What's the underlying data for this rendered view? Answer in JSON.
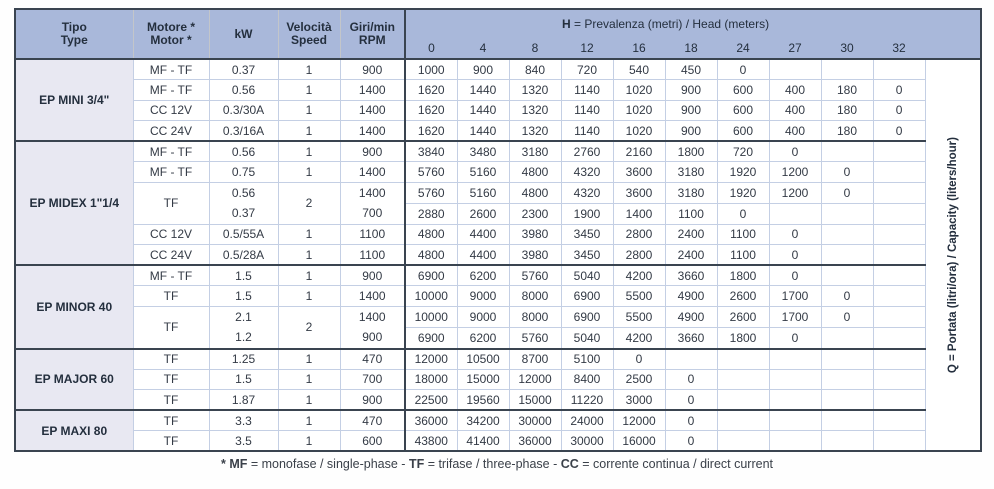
{
  "colors": {
    "header_bg": "#a9b8da",
    "section_bg": "#e8e8f2",
    "border_dark": "#3a4450",
    "grid_line": "#c4cfe4",
    "header_text": "#242f3e",
    "cell_text": "#333a45"
  },
  "table": {
    "left_columns": [
      {
        "id": "tipo",
        "lines": [
          "Tipo",
          "Type"
        ]
      },
      {
        "id": "motore",
        "lines": [
          "Motore *",
          "Motor *"
        ]
      },
      {
        "id": "kw",
        "lines": [
          "kW"
        ]
      },
      {
        "id": "velocita",
        "lines": [
          "Velocità",
          "Speed"
        ]
      },
      {
        "id": "giri",
        "lines": [
          "Giri/min",
          "RPM"
        ]
      }
    ],
    "head_group_parts": [
      {
        "text": "H",
        "bold": true
      },
      {
        "text": " = Prevalenza (metri) / Head (meters)",
        "bold": false
      }
    ],
    "head_values": [
      "0",
      "4",
      "8",
      "12",
      "16",
      "18",
      "24",
      "27",
      "30",
      "32"
    ],
    "capacity_label": "Q = Portata (litri/ora) / Capacity (liters/hour)",
    "sections": [
      {
        "name": "EP MINI 3/4\"",
        "rows": [
          {
            "motor": "MF - TF",
            "kw": "0.37",
            "speed": "1",
            "rpm": "900",
            "q": [
              "1000",
              "900",
              "840",
              "720",
              "540",
              "450",
              "0",
              "",
              "",
              ""
            ]
          },
          {
            "motor": "MF - TF",
            "kw": "0.56",
            "speed": "1",
            "rpm": "1400",
            "q": [
              "1620",
              "1440",
              "1320",
              "1140",
              "1020",
              "900",
              "600",
              "400",
              "180",
              "0"
            ]
          },
          {
            "motor": "CC 12V",
            "kw": "0.3/30A",
            "speed": "1",
            "rpm": "1400",
            "q": [
              "1620",
              "1440",
              "1320",
              "1140",
              "1020",
              "900",
              "600",
              "400",
              "180",
              "0"
            ]
          },
          {
            "motor": "CC 24V",
            "kw": "0.3/16A",
            "speed": "1",
            "rpm": "1400",
            "q": [
              "1620",
              "1440",
              "1320",
              "1140",
              "1020",
              "900",
              "600",
              "400",
              "180",
              "0"
            ]
          }
        ]
      },
      {
        "name": "EP MIDEX 1\"1/4",
        "rows": [
          {
            "motor": "MF - TF",
            "kw": "0.56",
            "speed": "1",
            "rpm": "900",
            "q": [
              "3840",
              "3480",
              "3180",
              "2760",
              "2160",
              "1800",
              "720",
              "0",
              "",
              ""
            ]
          },
          {
            "motor": "MF - TF",
            "kw": "0.75",
            "speed": "1",
            "rpm": "1400",
            "q": [
              "5760",
              "5160",
              "4800",
              "4320",
              "3600",
              "3180",
              "1920",
              "1200",
              "0",
              ""
            ]
          },
          {
            "motor": "TF",
            "kw": [
              "0.56",
              "0.37"
            ],
            "speed": "2",
            "rpm": [
              "1400",
              "700"
            ],
            "q": [
              [
                "5760",
                "5160",
                "4800",
                "4320",
                "3600",
                "3180",
                "1920",
                "1200",
                "0",
                ""
              ],
              [
                "2880",
                "2600",
                "2300",
                "1900",
                "1400",
                "1100",
                "0",
                "",
                "",
                ""
              ]
            ]
          },
          {
            "motor": "CC 12V",
            "kw": "0.5/55A",
            "speed": "1",
            "rpm": "1100",
            "q": [
              "4800",
              "4400",
              "3980",
              "3450",
              "2800",
              "2400",
              "1100",
              "0",
              "",
              ""
            ]
          },
          {
            "motor": "CC 24V",
            "kw": "0.5/28A",
            "speed": "1",
            "rpm": "1100",
            "q": [
              "4800",
              "4400",
              "3980",
              "3450",
              "2800",
              "2400",
              "1100",
              "0",
              "",
              ""
            ]
          }
        ]
      },
      {
        "name": "EP MINOR 40",
        "rows": [
          {
            "motor": "MF - TF",
            "kw": "1.5",
            "speed": "1",
            "rpm": "900",
            "q": [
              "6900",
              "6200",
              "5760",
              "5040",
              "4200",
              "3660",
              "1800",
              "0",
              "",
              ""
            ]
          },
          {
            "motor": "TF",
            "kw": "1.5",
            "speed": "1",
            "rpm": "1400",
            "q": [
              "10000",
              "9000",
              "8000",
              "6900",
              "5500",
              "4900",
              "2600",
              "1700",
              "0",
              ""
            ]
          },
          {
            "motor": "TF",
            "kw": [
              "2.1",
              "1.2"
            ],
            "speed": "2",
            "rpm": [
              "1400",
              "900"
            ],
            "q": [
              [
                "10000",
                "9000",
                "8000",
                "6900",
                "5500",
                "4900",
                "2600",
                "1700",
                "0",
                ""
              ],
              [
                "6900",
                "6200",
                "5760",
                "5040",
                "4200",
                "3660",
                "1800",
                "0",
                "",
                ""
              ]
            ]
          }
        ]
      },
      {
        "name": "EP MAJOR 60",
        "rows": [
          {
            "motor": "TF",
            "kw": "1.25",
            "speed": "1",
            "rpm": "470",
            "q": [
              "12000",
              "10500",
              "8700",
              "5100",
              "0",
              "",
              "",
              "",
              "",
              ""
            ]
          },
          {
            "motor": "TF",
            "kw": "1.5",
            "speed": "1",
            "rpm": "700",
            "q": [
              "18000",
              "15000",
              "12000",
              "8400",
              "2500",
              "0",
              "",
              "",
              "",
              ""
            ]
          },
          {
            "motor": "TF",
            "kw": "1.87",
            "speed": "1",
            "rpm": "900",
            "q": [
              "22500",
              "19560",
              "15000",
              "11220",
              "3000",
              "0",
              "",
              "",
              "",
              ""
            ]
          }
        ]
      },
      {
        "name": "EP MAXI 80",
        "rows": [
          {
            "motor": "TF",
            "kw": "3.3",
            "speed": "1",
            "rpm": "470",
            "q": [
              "36000",
              "34200",
              "30000",
              "24000",
              "12000",
              "0",
              "",
              "",
              "",
              ""
            ]
          },
          {
            "motor": "TF",
            "kw": "3.5",
            "speed": "1",
            "rpm": "600",
            "q": [
              "43800",
              "41400",
              "36000",
              "30000",
              "16000",
              "0",
              "",
              "",
              "",
              ""
            ]
          }
        ]
      }
    ]
  },
  "page": {
    "footnote_segments": [
      {
        "text": "* MF",
        "bold": true
      },
      {
        "text": " = monofase / single-phase - ",
        "bold": false
      },
      {
        "text": "TF",
        "bold": true
      },
      {
        "text": " = trifase / three-phase - ",
        "bold": false
      },
      {
        "text": "CC",
        "bold": true
      },
      {
        "text": " = corrente continua / direct current",
        "bold": false
      }
    ]
  }
}
